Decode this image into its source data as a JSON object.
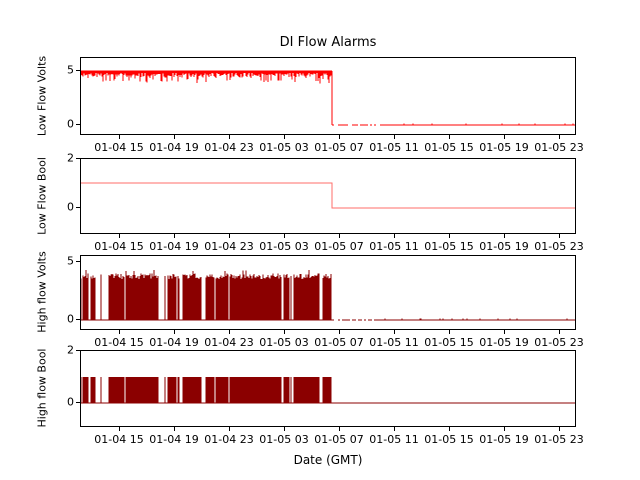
{
  "title": "DI Flow Alarms",
  "x_axis": {
    "label": "Date (GMT)",
    "tick_labels": [
      "01-04 15",
      "01-04 19",
      "01-04 23",
      "01-05 03",
      "01-05 07",
      "01-05 11",
      "01-05 15",
      "01-05 19",
      "01-05 23"
    ]
  },
  "subplots": [
    {
      "ylabel": "Low Flow Volts",
      "color": "#ff0000",
      "yticks": [
        "5",
        "0"
      ]
    },
    {
      "ylabel": "Low Flow Bool",
      "color": "#ff6e69",
      "yticks": [
        "2",
        "0"
      ]
    },
    {
      "ylabel": "High flow Volts",
      "color": "#8b0000",
      "yticks": [
        "5",
        "0"
      ]
    },
    {
      "ylabel": "High flow Bool",
      "color": "#8b0000",
      "yticks": [
        "2",
        "0"
      ]
    }
  ],
  "chart_data": {
    "type": "line",
    "title": "DI Flow Alarms",
    "xlabel": "Date (GMT)",
    "x_tick_labels": [
      "01-04 15",
      "01-04 19",
      "01-04 23",
      "01-05 03",
      "01-05 07",
      "01-05 11",
      "01-05 15",
      "01-05 19",
      "01-05 23"
    ],
    "x_range_approx": [
      "01-04 12:00",
      "01-06 01:00"
    ],
    "transition_time_approx": "01-05 06:30",
    "grid": false,
    "legend": "none",
    "subplots": [
      {
        "ylabel": "Low Flow Volts",
        "y_tick_values": [
          0,
          5
        ],
        "color": "#ff0000",
        "segments": [
          {
            "from": "start",
            "to": "01-05 06:30",
            "behavior": "noisy signal, mostly 4.6-5.0 V with dips to ~4.0 V"
          },
          {
            "from": "01-05 06:30",
            "to": "end",
            "behavior": "flat ~0 V with sparse tiny noise"
          }
        ]
      },
      {
        "ylabel": "Low Flow Bool",
        "y_tick_values": [
          0,
          2
        ],
        "color": "#ff6e69",
        "segments": [
          {
            "from": "start",
            "to": "01-05 06:30",
            "value": 1
          },
          {
            "from": "01-05 06:30",
            "to": "end",
            "value": 0
          }
        ]
      },
      {
        "ylabel": "High flow Volts",
        "y_tick_values": [
          0,
          5
        ],
        "color": "#8b0000",
        "segments": [
          {
            "from": "start",
            "to": "01-05 06:30",
            "behavior": "dense pulsing between 0 and ~3.8-4.3 V with intermittent gaps at 0"
          },
          {
            "from": "01-05 06:30",
            "to": "end",
            "behavior": "flat ~0 V with sparse tiny noise"
          }
        ]
      },
      {
        "ylabel": "High flow Bool",
        "y_tick_values": [
          0,
          2
        ],
        "color": "#8b0000",
        "segments": [
          {
            "from": "start",
            "to": "01-05 06:30",
            "behavior": "dense pulsing between 0 and 1 with intermittent gaps at 0"
          },
          {
            "from": "01-05 06:30",
            "to": "end",
            "value": 0
          }
        ]
      }
    ]
  }
}
